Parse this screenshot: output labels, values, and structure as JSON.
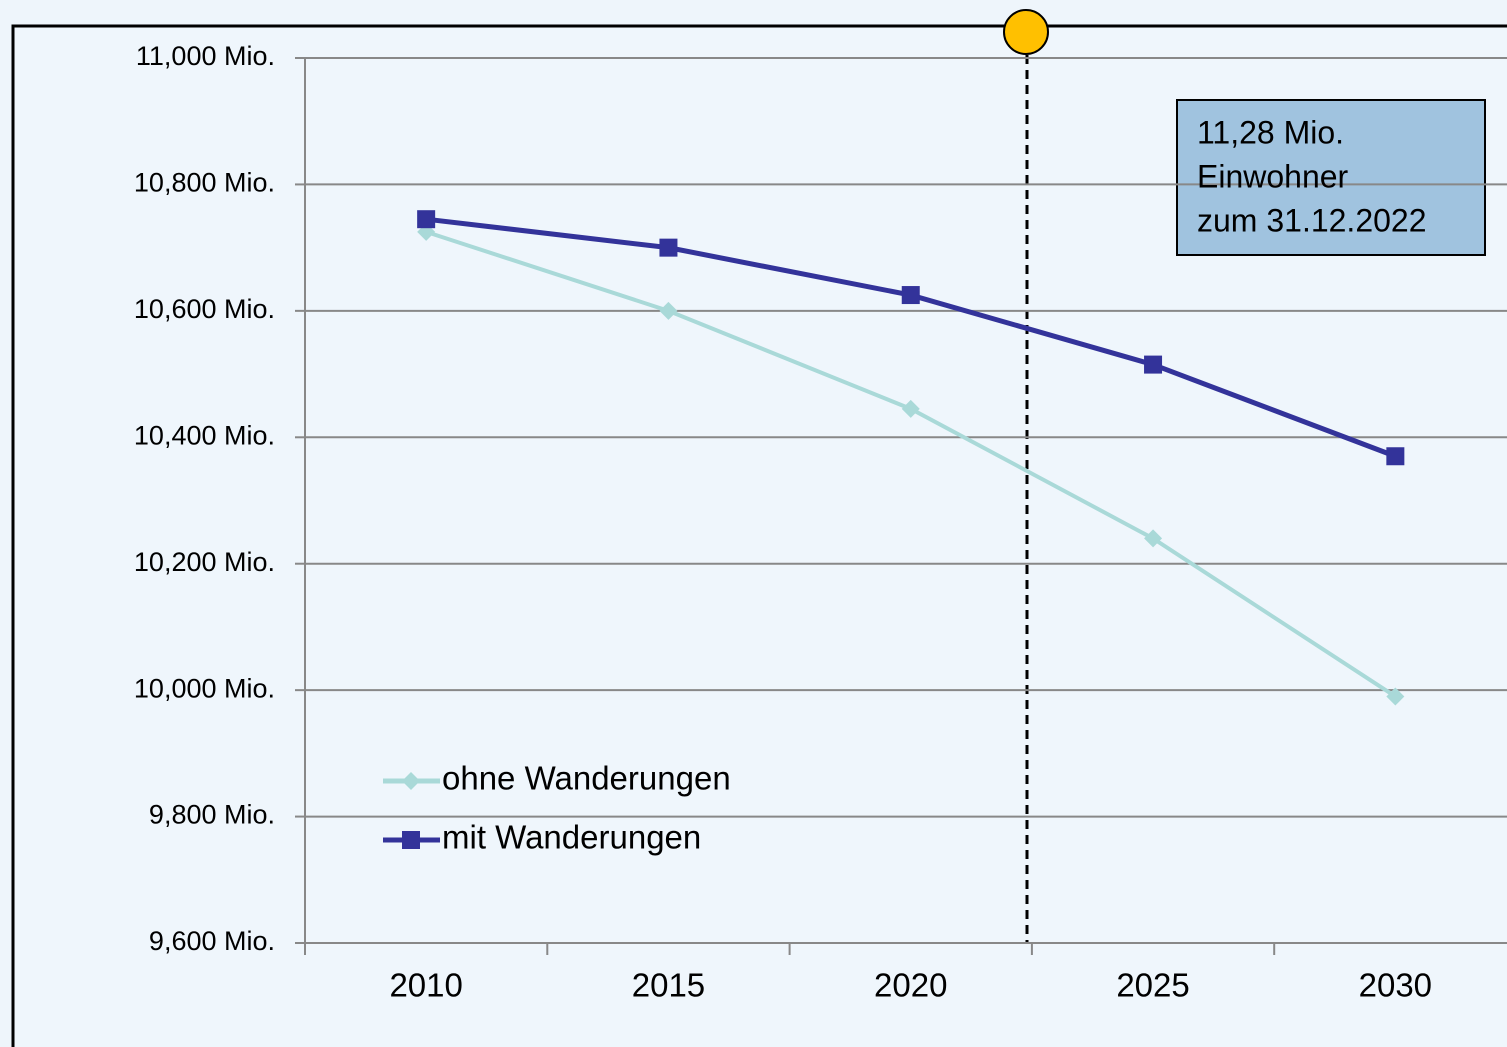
{
  "chart_data": {
    "type": "line",
    "categories": [
      "2010",
      "2015",
      "2020",
      "2025",
      "2030"
    ],
    "series": [
      {
        "name": "ohne Wanderungen",
        "color": "#a9d9d8",
        "marker": "diamond",
        "values": [
          10725,
          10600,
          10445,
          10240,
          9990
        ]
      },
      {
        "name": "mit Wanderungen",
        "color": "#33339a",
        "marker": "square",
        "values": [
          10745,
          10700,
          10625,
          10515,
          10370
        ]
      }
    ],
    "ylim": [
      9600,
      11000
    ],
    "yticks": [
      {
        "value": 9600,
        "label": "9,600 Mio."
      },
      {
        "value": 9800,
        "label": "9,800 Mio."
      },
      {
        "value": 10000,
        "label": "10,000 Mio."
      },
      {
        "value": 10200,
        "label": "10,200 Mio."
      },
      {
        "value": 10400,
        "label": "10,400 Mio."
      },
      {
        "value": 10600,
        "label": "10,600 Mio."
      },
      {
        "value": 10800,
        "label": "10,800 Mio."
      },
      {
        "value": 11000,
        "label": "11,000 Mio."
      }
    ],
    "grid": true,
    "legend": "lower left",
    "annotation": [
      "11,28 Mio.",
      "Einwohner",
      "zum 31.12.2022"
    ]
  }
}
